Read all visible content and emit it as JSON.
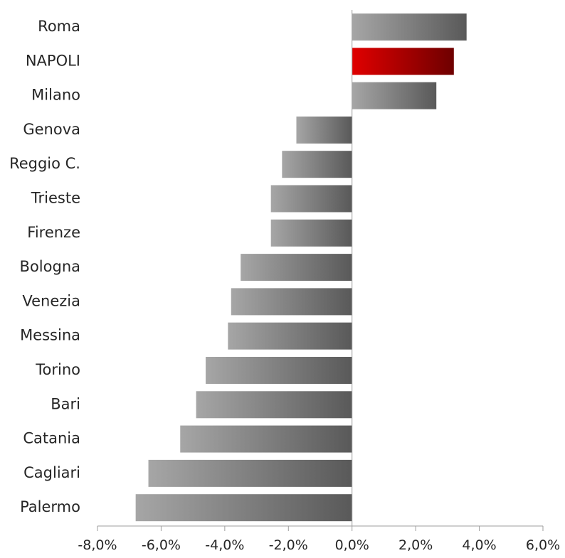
{
  "chart_data": {
    "type": "bar",
    "orientation": "horizontal",
    "categories": [
      "Roma",
      "NAPOLI",
      "Milano",
      "Genova",
      "Reggio C.",
      "Trieste",
      "Firenze",
      "Bologna",
      "Venezia",
      "Messina",
      "Torino",
      "Bari",
      "Catania",
      "Cagliari",
      "Palermo"
    ],
    "values": [
      3.6,
      3.2,
      2.65,
      -1.75,
      -2.2,
      -2.55,
      -2.55,
      -3.5,
      -3.8,
      -3.9,
      -4.6,
      -4.9,
      -5.4,
      -6.4,
      -6.8
    ],
    "highlight_category": "NAPOLI",
    "colors": {
      "bar_light": "#a6a6a6",
      "bar_dark": "#595959",
      "highlight_light": "#e00000",
      "highlight_dark": "#6e0000",
      "axis": "#9e9e9e",
      "text": "#262626"
    },
    "x_ticks": [
      -8,
      -6,
      -4,
      -2,
      0,
      2,
      4,
      6
    ],
    "x_tick_labels": [
      "-8,0%",
      "-6,0%",
      "-4,0%",
      "-2,0%",
      "0,0%",
      "2,0%",
      "4,0%",
      "6,0%"
    ],
    "xlim": [
      -8,
      6
    ],
    "grid": false,
    "legend": "none",
    "title": "",
    "xlabel": "",
    "ylabel": ""
  }
}
